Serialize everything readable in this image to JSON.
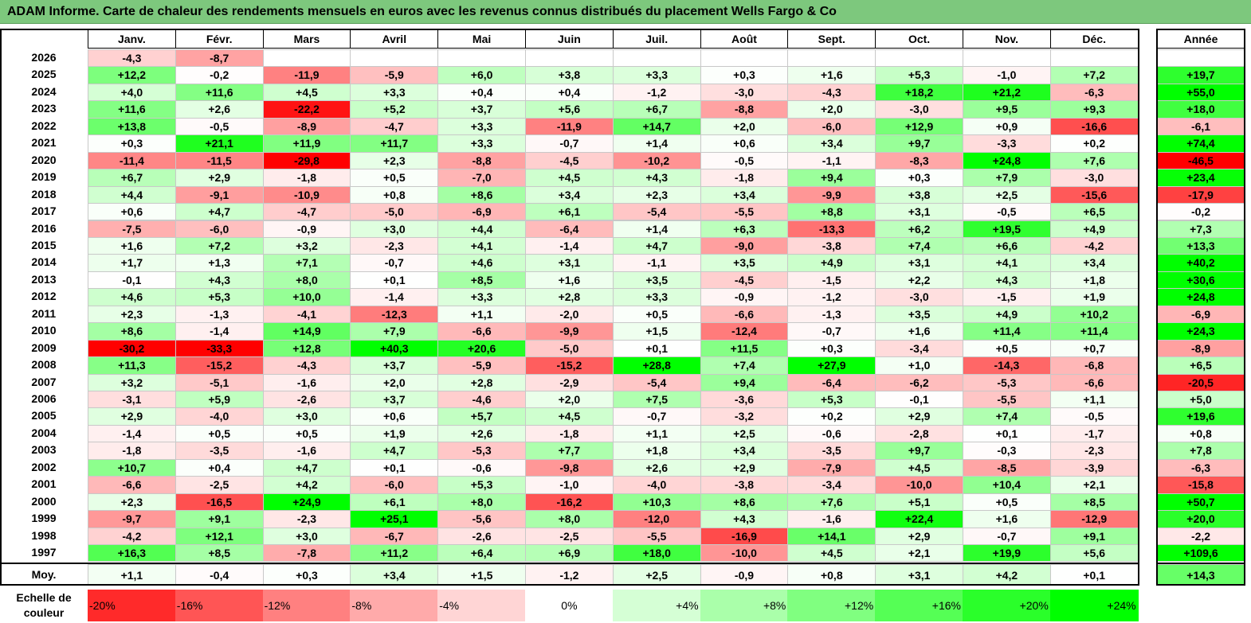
{
  "title": "ADAM Informe. Carte de chaleur des rendements mensuels en euros avec les revenus connus distribués du placement Wells Fargo & Co",
  "chart_data": {
    "type": "heatmap",
    "months": [
      "Janv.",
      "Févr.",
      "Mars",
      "Avril",
      "Mai",
      "Juin",
      "Juil.",
      "Août",
      "Sept.",
      "Oct.",
      "Nov.",
      "Déc."
    ],
    "year_header": "Année",
    "rows": [
      {
        "year": "2026",
        "values": [
          "-4,3",
          "-8,7",
          "",
          "",
          "",
          "",
          "",
          "",
          "",
          "",
          "",
          ""
        ],
        "annual": ""
      },
      {
        "year": "2025",
        "values": [
          "+12,2",
          "-0,2",
          "-11,9",
          "-5,9",
          "+6,0",
          "+3,8",
          "+3,3",
          "+0,3",
          "+1,6",
          "+5,3",
          "-1,0",
          "+7,2"
        ],
        "annual": "+19,7"
      },
      {
        "year": "2024",
        "values": [
          "+4,0",
          "+11,6",
          "+4,5",
          "+3,3",
          "+0,4",
          "+0,4",
          "-1,2",
          "-3,0",
          "-4,3",
          "+18,2",
          "+21,2",
          "-6,3"
        ],
        "annual": "+55,0"
      },
      {
        "year": "2023",
        "values": [
          "+11,6",
          "+2,6",
          "-22,2",
          "+5,2",
          "+3,7",
          "+5,6",
          "+6,7",
          "-8,8",
          "+2,0",
          "-3,0",
          "+9,5",
          "+9,3"
        ],
        "annual": "+18,0"
      },
      {
        "year": "2022",
        "values": [
          "+13,8",
          "-0,5",
          "-8,9",
          "-4,7",
          "+3,3",
          "-11,9",
          "+14,7",
          "+2,0",
          "-6,0",
          "+12,9",
          "+0,9",
          "-16,6"
        ],
        "annual": "-6,1"
      },
      {
        "year": "2021",
        "values": [
          "+0,3",
          "+21,1",
          "+11,9",
          "+11,7",
          "+3,3",
          "-0,7",
          "+1,4",
          "+0,6",
          "+3,4",
          "+9,7",
          "-3,3",
          "+0,2"
        ],
        "annual": "+74,4"
      },
      {
        "year": "2020",
        "values": [
          "-11,4",
          "-11,5",
          "-29,8",
          "+2,3",
          "-8,8",
          "-4,5",
          "-10,2",
          "-0,5",
          "-1,1",
          "-8,3",
          "+24,8",
          "+7,6"
        ],
        "annual": "-46,5"
      },
      {
        "year": "2019",
        "values": [
          "+6,7",
          "+2,9",
          "-1,8",
          "+0,5",
          "-7,0",
          "+4,5",
          "+4,3",
          "-1,8",
          "+9,4",
          "+0,3",
          "+7,9",
          "-3,0"
        ],
        "annual": "+23,4"
      },
      {
        "year": "2018",
        "values": [
          "+4,4",
          "-9,1",
          "-10,9",
          "+0,8",
          "+8,6",
          "+3,4",
          "+2,3",
          "+3,4",
          "-9,9",
          "+3,8",
          "+2,5",
          "-15,6"
        ],
        "annual": "-17,9"
      },
      {
        "year": "2017",
        "values": [
          "+0,6",
          "+4,7",
          "-4,7",
          "-5,0",
          "-6,9",
          "+6,1",
          "-5,4",
          "-5,5",
          "+8,8",
          "+3,1",
          "-0,5",
          "+6,5"
        ],
        "annual": "-0,2"
      },
      {
        "year": "2016",
        "values": [
          "-7,5",
          "-6,0",
          "-0,9",
          "+3,0",
          "+4,4",
          "-6,4",
          "+1,4",
          "+6,3",
          "-13,3",
          "+6,2",
          "+19,5",
          "+4,9"
        ],
        "annual": "+7,3"
      },
      {
        "year": "2015",
        "values": [
          "+1,6",
          "+7,2",
          "+3,2",
          "-2,3",
          "+4,1",
          "-1,4",
          "+4,7",
          "-9,0",
          "-3,8",
          "+7,4",
          "+6,6",
          "-4,2"
        ],
        "annual": "+13,3"
      },
      {
        "year": "2014",
        "values": [
          "+1,7",
          "+1,3",
          "+7,1",
          "-0,7",
          "+4,6",
          "+3,1",
          "-1,1",
          "+3,5",
          "+4,9",
          "+3,1",
          "+4,1",
          "+3,4"
        ],
        "annual": "+40,2"
      },
      {
        "year": "2013",
        "values": [
          "-0,1",
          "+4,3",
          "+8,0",
          "+0,1",
          "+8,5",
          "+1,6",
          "+3,5",
          "-4,5",
          "-1,5",
          "+2,2",
          "+4,3",
          "+1,8"
        ],
        "annual": "+30,6"
      },
      {
        "year": "2012",
        "values": [
          "+4,6",
          "+5,3",
          "+10,0",
          "-1,4",
          "+3,3",
          "+2,8",
          "+3,3",
          "-0,9",
          "-1,2",
          "-3,0",
          "-1,5",
          "+1,9"
        ],
        "annual": "+24,8"
      },
      {
        "year": "2011",
        "values": [
          "+2,3",
          "-1,3",
          "-4,1",
          "-12,3",
          "+1,1",
          "-2,0",
          "+0,5",
          "-6,6",
          "-1,3",
          "+3,5",
          "+4,9",
          "+10,2"
        ],
        "annual": "-6,9"
      },
      {
        "year": "2010",
        "values": [
          "+8,6",
          "-1,4",
          "+14,9",
          "+7,9",
          "-6,6",
          "-9,9",
          "+1,5",
          "-12,4",
          "-0,7",
          "+1,6",
          "+11,4",
          "+11,4"
        ],
        "annual": "+24,3"
      },
      {
        "year": "2009",
        "values": [
          "-30,2",
          "-33,3",
          "+12,8",
          "+40,3",
          "+20,6",
          "-5,0",
          "+0,1",
          "+11,5",
          "+0,3",
          "-3,4",
          "+0,5",
          "+0,7"
        ],
        "annual": "-8,9"
      },
      {
        "year": "2008",
        "values": [
          "+11,3",
          "-15,2",
          "-4,3",
          "+3,7",
          "-5,9",
          "-15,2",
          "+28,8",
          "+7,4",
          "+27,9",
          "+1,0",
          "-14,3",
          "-6,8"
        ],
        "annual": "+6,5"
      },
      {
        "year": "2007",
        "values": [
          "+3,2",
          "-5,1",
          "-1,6",
          "+2,0",
          "+2,8",
          "-2,9",
          "-5,4",
          "+9,4",
          "-6,4",
          "-6,2",
          "-5,3",
          "-6,6"
        ],
        "annual": "-20,5"
      },
      {
        "year": "2006",
        "values": [
          "-3,1",
          "+5,9",
          "-2,6",
          "+3,7",
          "-4,6",
          "+2,0",
          "+7,5",
          "-3,6",
          "+5,3",
          "-0,1",
          "-5,5",
          "+1,1"
        ],
        "annual": "+5,0"
      },
      {
        "year": "2005",
        "values": [
          "+2,9",
          "-4,0",
          "+3,0",
          "+0,6",
          "+5,7",
          "+4,5",
          "-0,7",
          "-3,2",
          "+0,2",
          "+2,9",
          "+7,4",
          "-0,5"
        ],
        "annual": "+19,6"
      },
      {
        "year": "2004",
        "values": [
          "-1,4",
          "+0,5",
          "+0,5",
          "+1,9",
          "+2,6",
          "-1,8",
          "+1,1",
          "+2,5",
          "-0,6",
          "-2,8",
          "+0,1",
          "-1,7"
        ],
        "annual": "+0,8"
      },
      {
        "year": "2003",
        "values": [
          "-1,8",
          "-3,5",
          "-1,6",
          "+4,7",
          "-5,3",
          "+7,7",
          "+1,8",
          "+3,4",
          "-3,5",
          "+9,7",
          "-0,3",
          "-2,3"
        ],
        "annual": "+7,8"
      },
      {
        "year": "2002",
        "values": [
          "+10,7",
          "+0,4",
          "+4,7",
          "+0,1",
          "-0,6",
          "-9,8",
          "+2,6",
          "+2,9",
          "-7,9",
          "+4,5",
          "-8,5",
          "-3,9"
        ],
        "annual": "-6,3"
      },
      {
        "year": "2001",
        "values": [
          "-6,6",
          "-2,5",
          "+4,2",
          "-6,0",
          "+5,3",
          "-1,0",
          "-4,0",
          "-3,8",
          "-3,4",
          "-10,0",
          "+10,4",
          "+2,1"
        ],
        "annual": "-15,8"
      },
      {
        "year": "2000",
        "values": [
          "+2,3",
          "-16,5",
          "+24,9",
          "+6,1",
          "+8,0",
          "-16,2",
          "+10,3",
          "+8,6",
          "+7,6",
          "+5,1",
          "+0,5",
          "+8,5"
        ],
        "annual": "+50,7"
      },
      {
        "year": "1999",
        "values": [
          "-9,7",
          "+9,1",
          "-2,3",
          "+25,1",
          "-5,6",
          "+8,0",
          "-12,0",
          "+4,3",
          "-1,6",
          "+22,4",
          "+1,6",
          "-12,9"
        ],
        "annual": "+20,0"
      },
      {
        "year": "1998",
        "values": [
          "-4,2",
          "+12,1",
          "+3,0",
          "-6,7",
          "-2,6",
          "-2,5",
          "-5,5",
          "-16,9",
          "+14,1",
          "+2,9",
          "-0,7",
          "+9,1"
        ],
        "annual": "-2,2"
      },
      {
        "year": "1997",
        "values": [
          "+16,3",
          "+8,5",
          "-7,8",
          "+11,2",
          "+6,4",
          "+6,9",
          "+18,0",
          "-10,0",
          "+4,5",
          "+2,1",
          "+19,9",
          "+5,6"
        ],
        "annual": "+109,6"
      }
    ],
    "average": {
      "label": "Moy.",
      "values": [
        "+1,1",
        "-0,4",
        "+0,3",
        "+3,4",
        "+1,5",
        "-1,2",
        "+2,5",
        "-0,9",
        "+0,8",
        "+3,1",
        "+4,2",
        "+0,1"
      ],
      "annual": "+14,3"
    },
    "scale": {
      "label": "Echelle de couleur",
      "steps": [
        "-20%",
        "-16%",
        "-12%",
        "-8%",
        "-4%",
        "0%",
        "+4%",
        "+8%",
        "+12%",
        "+16%",
        "+20%",
        "+24%"
      ],
      "values": [
        -20,
        -16,
        -12,
        -8,
        -4,
        0,
        4,
        8,
        12,
        16,
        20,
        24
      ]
    },
    "colors": {
      "negative_max": "#ff0000",
      "positive_max": "#00ff00",
      "neutral": "#ffffff",
      "title_bg": "#7dc87d"
    }
  }
}
